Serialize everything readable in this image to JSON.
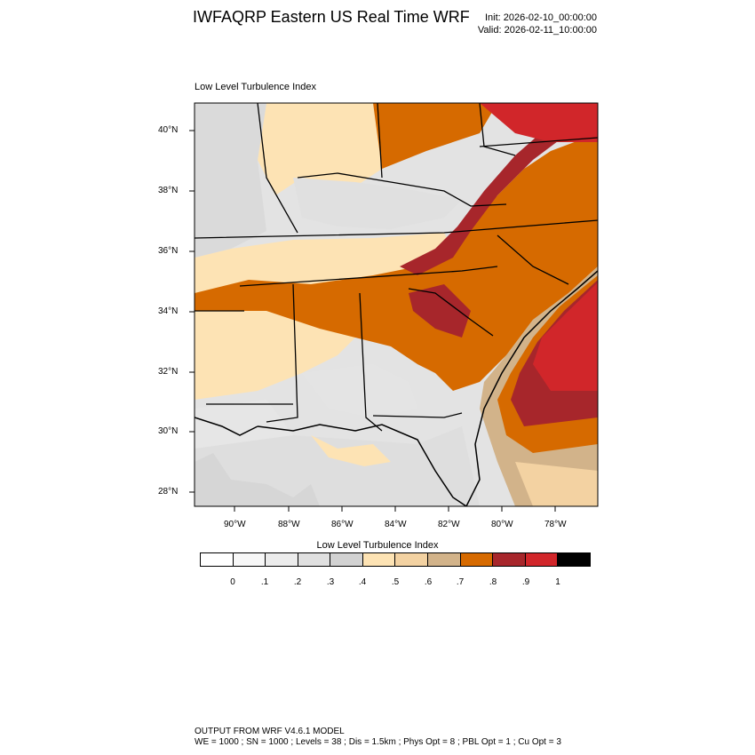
{
  "header": {
    "title": "IWFAQRP Eastern US Real Time WRF",
    "init": "Init: 2026-02-10_00:00:00",
    "valid": "Valid: 2026-02-11_10:00:00"
  },
  "plot": {
    "label": "Low Level Turbulence Index",
    "lon_ticks": [
      "90°W",
      "88°W",
      "86°W",
      "84°W",
      "82°W",
      "80°W",
      "78°W"
    ],
    "lat_ticks": [
      "40°N",
      "38°N",
      "36°N",
      "34°N",
      "32°N",
      "30°N",
      "28°N"
    ]
  },
  "colorbar": {
    "title": "Low Level Turbulence Index",
    "labels": [
      "0",
      ".1",
      ".2",
      ".3",
      ".4",
      ".5",
      ".6",
      ".7",
      ".8",
      ".9",
      "1"
    ],
    "colors": [
      "#ffffff",
      "#f7f7f7",
      "#ececec",
      "#e0e0e0",
      "#d2d2d2",
      "#fde3b4",
      "#f3d2a2",
      "#d2b38a",
      "#d66a00",
      "#a7262b",
      "#d1262a",
      "#000000"
    ]
  },
  "footer": {
    "line1": "OUTPUT FROM WRF V4.6.1 MODEL",
    "line2": "WE = 1000 ; SN = 1000 ; Levels = 38 ; Dis = 1.5km ; Phys Opt = 8 ; PBL Opt = 1 ; Cu Opt = 3"
  }
}
